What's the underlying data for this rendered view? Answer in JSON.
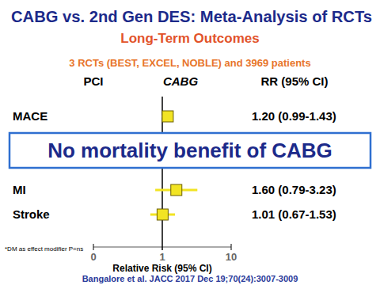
{
  "chart_data": {
    "type": "forest",
    "title": "CABG vs. 2nd Gen DES: Meta-Analysis of RCTs",
    "subtitle": "Long-Term Outcomes",
    "annotations": [
      "3 RCTs (BEST, EXCEL, NOBLE) and 3969 patients",
      "No mortality benefit of CABG",
      "*DM as effect modifier P=ns",
      "Bangalore et al. JACC  2017 Dec 19;70(24):3007-3009"
    ],
    "column_headers": [
      "PCI",
      "CABG",
      "RR (95% CI)"
    ],
    "categories": [
      "MACE",
      null,
      null,
      "MI",
      "Stroke"
    ],
    "values": [
      1.2,
      null,
      null,
      1.6,
      1.01
    ],
    "lower": [
      0.99,
      null,
      null,
      0.79,
      0.67
    ],
    "upper": [
      1.43,
      null,
      null,
      3.23,
      1.53
    ],
    "value_labels": [
      "1.20 (0.99-1.43)",
      null,
      null,
      "1.60 (0.79-3.23)",
      "1.01 (0.67-1.53)"
    ],
    "x_label": "Relative Risk (95% CI)",
    "xlim": [
      0.1,
      10
    ],
    "xticks": [
      {
        "value": 0.1,
        "label": "0"
      },
      1,
      10
    ],
    "log": "x",
    "grid": false,
    "color": "#f2e423",
    "data_labels": true
  }
}
